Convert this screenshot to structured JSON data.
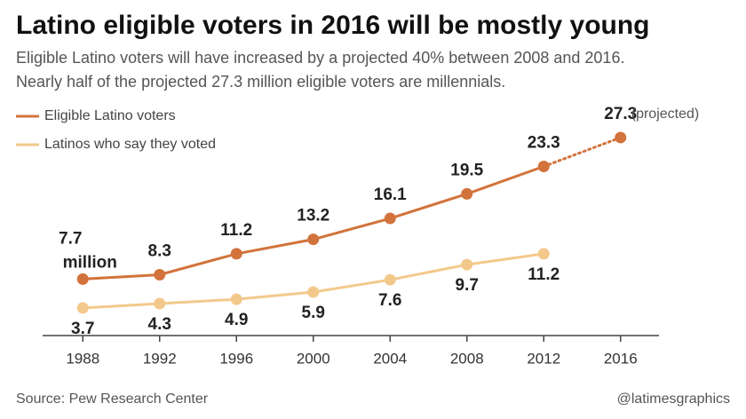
{
  "chart_data": {
    "type": "line",
    "title": "Latino eligible voters in 2016 will be mostly young",
    "subtitle": [
      "Eligible Latino voters will have increased by a projected 40% between 2008 and 2016.",
      "Nearly half of the projected 27.3 million eligible voters are millennials."
    ],
    "x": [
      1988,
      1992,
      1996,
      2000,
      2004,
      2008,
      2012,
      2016
    ],
    "xticks": [
      1988,
      1992,
      1996,
      2000,
      2004,
      2008,
      2012,
      2016
    ],
    "xlim": [
      1986,
      2018
    ],
    "ylim": [
      0,
      30
    ],
    "series": [
      {
        "name": "Eligible Latino voters",
        "color": "#d2733b",
        "values": [
          7.7,
          8.3,
          11.2,
          13.2,
          16.1,
          19.5,
          23.3,
          27.3
        ],
        "dotted_last_segment": true
      },
      {
        "name": "Latinos who say they voted",
        "color": "#f3c98b",
        "values": [
          3.7,
          4.3,
          4.9,
          5.9,
          7.6,
          9.7,
          11.2,
          null
        ]
      }
    ],
    "annotations": [
      "million",
      "(projected)"
    ],
    "source": "Source: Pew Research Center",
    "credit": "@latimesgraphics"
  }
}
